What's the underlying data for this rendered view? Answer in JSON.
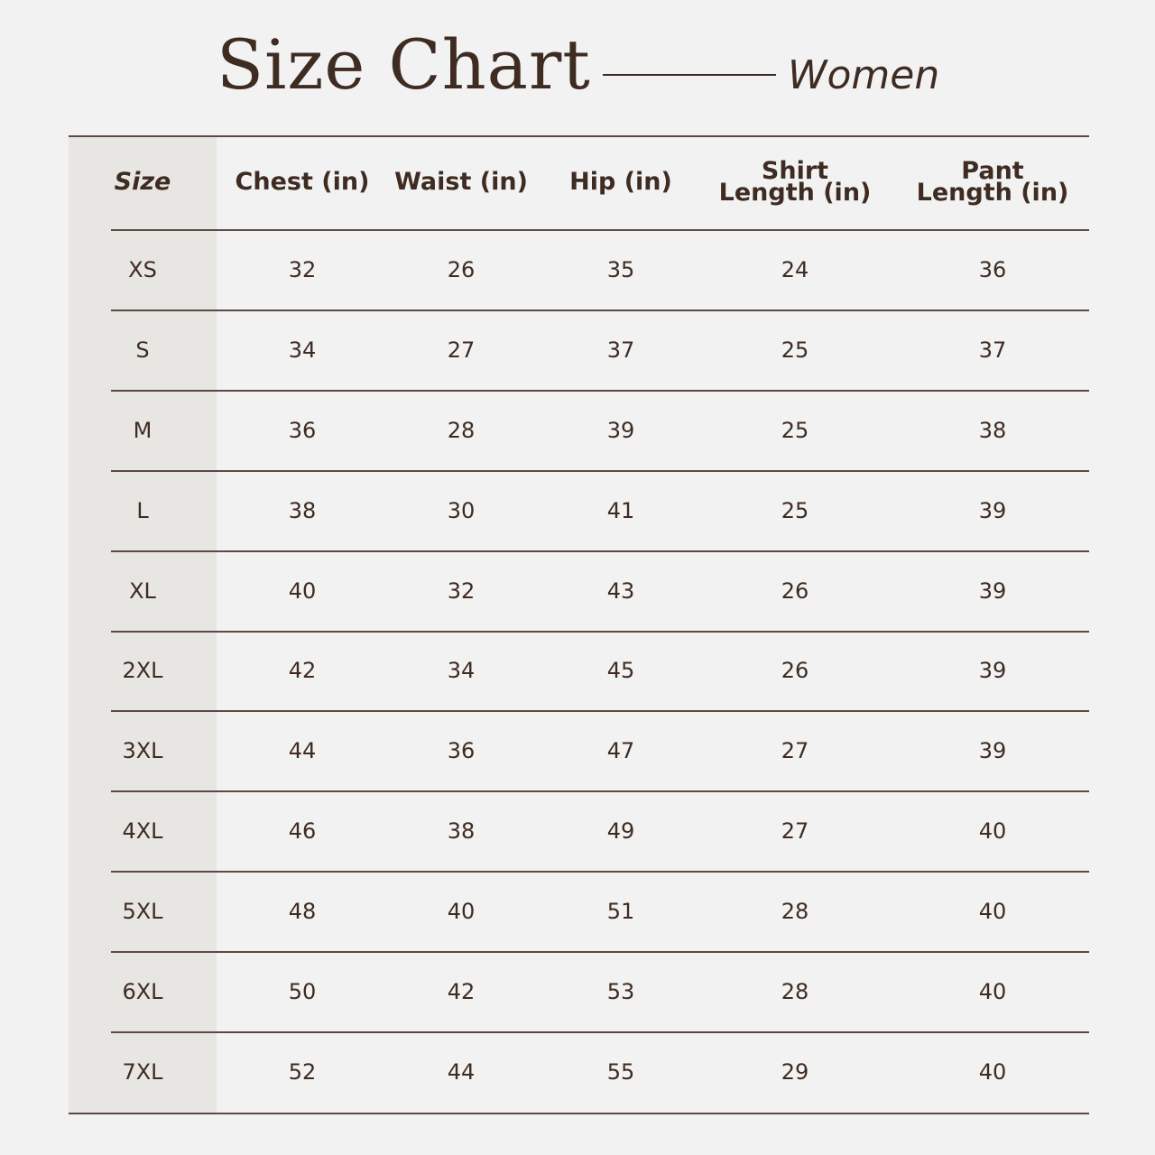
{
  "header": {
    "title": "Size Chart",
    "subtitle": "Women"
  },
  "table": {
    "columns": [
      "Size",
      "Chest (in)",
      "Waist (in)",
      "Hip (in)",
      "Shirt\nLength (in)",
      "Pant\nLength (in)"
    ],
    "rows": [
      [
        "XS",
        "32",
        "26",
        "35",
        "24",
        "36"
      ],
      [
        "S",
        "34",
        "27",
        "37",
        "25",
        "37"
      ],
      [
        "M",
        "36",
        "28",
        "39",
        "25",
        "38"
      ],
      [
        "L",
        "38",
        "30",
        "41",
        "25",
        "39"
      ],
      [
        "XL",
        "40",
        "32",
        "43",
        "26",
        "39"
      ],
      [
        "2XL",
        "42",
        "34",
        "45",
        "26",
        "39"
      ],
      [
        "3XL",
        "44",
        "36",
        "47",
        "27",
        "39"
      ],
      [
        "4XL",
        "46",
        "38",
        "49",
        "27",
        "40"
      ],
      [
        "5XL",
        "48",
        "40",
        "51",
        "28",
        "40"
      ],
      [
        "6XL",
        "50",
        "42",
        "53",
        "28",
        "40"
      ],
      [
        "7XL",
        "52",
        "44",
        "55",
        "29",
        "40"
      ]
    ]
  },
  "colors": {
    "text": "#3e2c22",
    "background": "#f2f2f2",
    "size_column": "#e8e6e2"
  }
}
